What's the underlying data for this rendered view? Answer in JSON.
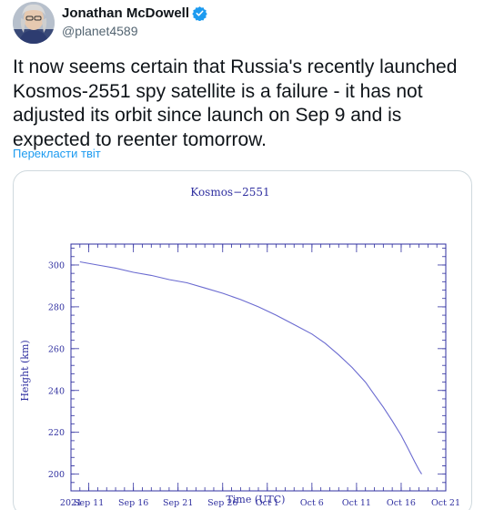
{
  "author": {
    "name": "Jonathan McDowell",
    "handle": "@planet4589",
    "verified": true,
    "avatar_icon": "avatar-portrait-icon",
    "verified_icon": "verified-badge-icon"
  },
  "tweet": {
    "text": "It now seems certain that Russia's recently launched Kosmos-2551 spy satellite is a failure - it has not adjusted its orbit since launch on Sep 9 and is expected to reenter tomorrow.",
    "translate_label": "Перекласти твіт"
  },
  "colors": {
    "accent": "#1d9bf0",
    "chart_ink": "#3030a0",
    "chart_line": "#6a6ad0",
    "border": "#cfd9de"
  },
  "chart_data": {
    "type": "line",
    "title": "Kosmos−2551",
    "xlabel": "Time (UTC)",
    "ylabel": "Height (km)",
    "x_tick_labels": [
      "2021",
      "Sep 11",
      "Sep 16",
      "Sep 21",
      "Sep 26",
      "Oct 1",
      "Oct 6",
      "Oct 11",
      "Oct 16",
      "Oct 21"
    ],
    "x_ticks_day": [
      0,
      2,
      7,
      12,
      17,
      22,
      27,
      32,
      37,
      42
    ],
    "y_ticks": [
      200,
      220,
      240,
      260,
      280,
      300
    ],
    "xlim_day": [
      0,
      42
    ],
    "ylim": [
      192,
      310
    ],
    "grid": false,
    "series": [
      {
        "name": "",
        "x_day": [
          1.0,
          3.0,
          5.0,
          7.0,
          9.0,
          11.0,
          13.0,
          15.0,
          17.0,
          19.0,
          21.0,
          23.0,
          25.0,
          27.0,
          28.5,
          30.0,
          31.5,
          33.0,
          34.0,
          35.0,
          36.0,
          37.0,
          37.8,
          38.5,
          39.0,
          39.3
        ],
        "height_km": [
          301.5,
          300,
          298.5,
          296.5,
          295,
          293,
          291.5,
          289,
          286.5,
          283.5,
          280,
          276,
          271.5,
          267,
          262.5,
          257,
          251,
          244,
          238,
          232,
          225.5,
          218.5,
          212,
          206,
          202,
          200
        ]
      }
    ]
  }
}
